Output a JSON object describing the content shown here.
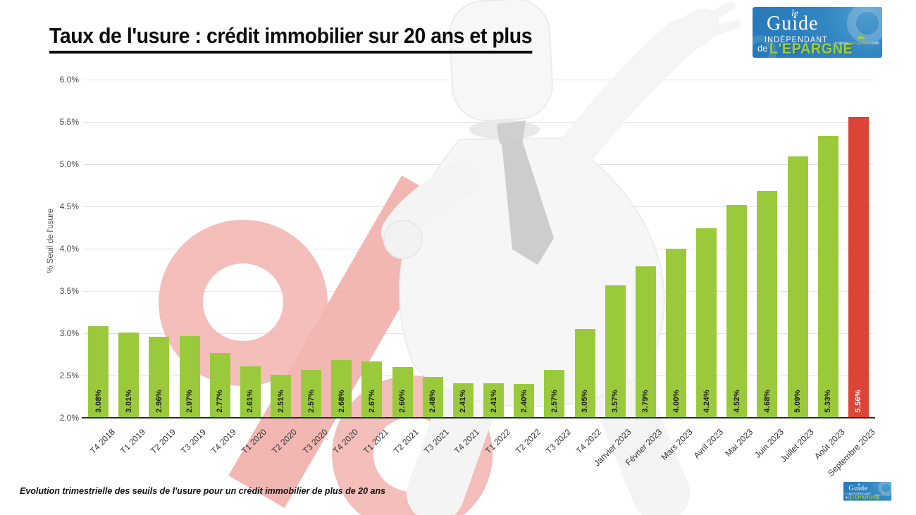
{
  "title": "Taux de l'usure : crédit immobilier sur 20 ans et plus",
  "footer": {
    "caption": "Evolution trimestrielle des seuils de l'usure pour un crédit immobilier de plus de 20 ans"
  },
  "logo": {
    "le": "le",
    "guide": "Guide",
    "independant": "INDÉPENDANT",
    "de": "de",
    "epargne": "L'ÉPARGNE",
    "site_prefix": "France",
    "site_mid": "Transactions",
    "site_suffix": ".com",
    "bg_color": "#2b7fbe",
    "accent_green": "#9fce3a"
  },
  "watermark": {
    "glyph": "%",
    "color": "#f3b7b3"
  },
  "chart_data": {
    "type": "bar",
    "title": "Taux de l'usure : crédit immobilier sur 20 ans et plus",
    "xlabel": "",
    "ylabel": "% Seuil de l'usure",
    "ylim": [
      2.0,
      6.0
    ],
    "y_ticks": [
      "6.0%",
      "5.5%",
      "5.0%",
      "4.5%",
      "4.0%",
      "3.5%",
      "3.0%",
      "2.5%",
      "2.0%"
    ],
    "grid": true,
    "legend": false,
    "bar_color": "#9aca3c",
    "highlight_color": "#db4437",
    "highlight_index": 25,
    "categories": [
      "T4 2018",
      "T1 2019",
      "T2 2019",
      "T3 2019",
      "T4 2019",
      "T1 2020",
      "T2 2020",
      "T3 2020",
      "T4 2020",
      "T1 2021",
      "T2 2021",
      "T3 2021",
      "T4 2021",
      "T1 2022",
      "T2 2022",
      "T3 2022",
      "T4 2022",
      "Janvier 2023",
      "Février 2023",
      "Mars 2023",
      "Avril 2023",
      "Mai 2023",
      "Juin 2023",
      "Juillet 2023",
      "Août 2023",
      "Septembre 2023"
    ],
    "values": [
      3.08,
      3.01,
      2.96,
      2.97,
      2.77,
      2.61,
      2.51,
      2.57,
      2.68,
      2.67,
      2.6,
      2.48,
      2.41,
      2.41,
      2.4,
      2.57,
      3.05,
      3.57,
      3.79,
      4.0,
      4.24,
      4.52,
      4.68,
      5.09,
      5.33,
      5.56
    ],
    "value_labels": [
      "3.08%",
      "3.01%",
      "2.96%",
      "2.97%",
      "2.77%",
      "2.61%",
      "2.51%",
      "2.57%",
      "2.68%",
      "2.67%",
      "2.60%",
      "2.48%",
      "2.41%",
      "2.41%",
      "2.40%",
      "2.57%",
      "3.05%",
      "3.57%",
      "3.79%",
      "4.00%",
      "4.24%",
      "4.52%",
      "4.68%",
      "5.09%",
      "5.33%",
      "5.56%"
    ]
  }
}
